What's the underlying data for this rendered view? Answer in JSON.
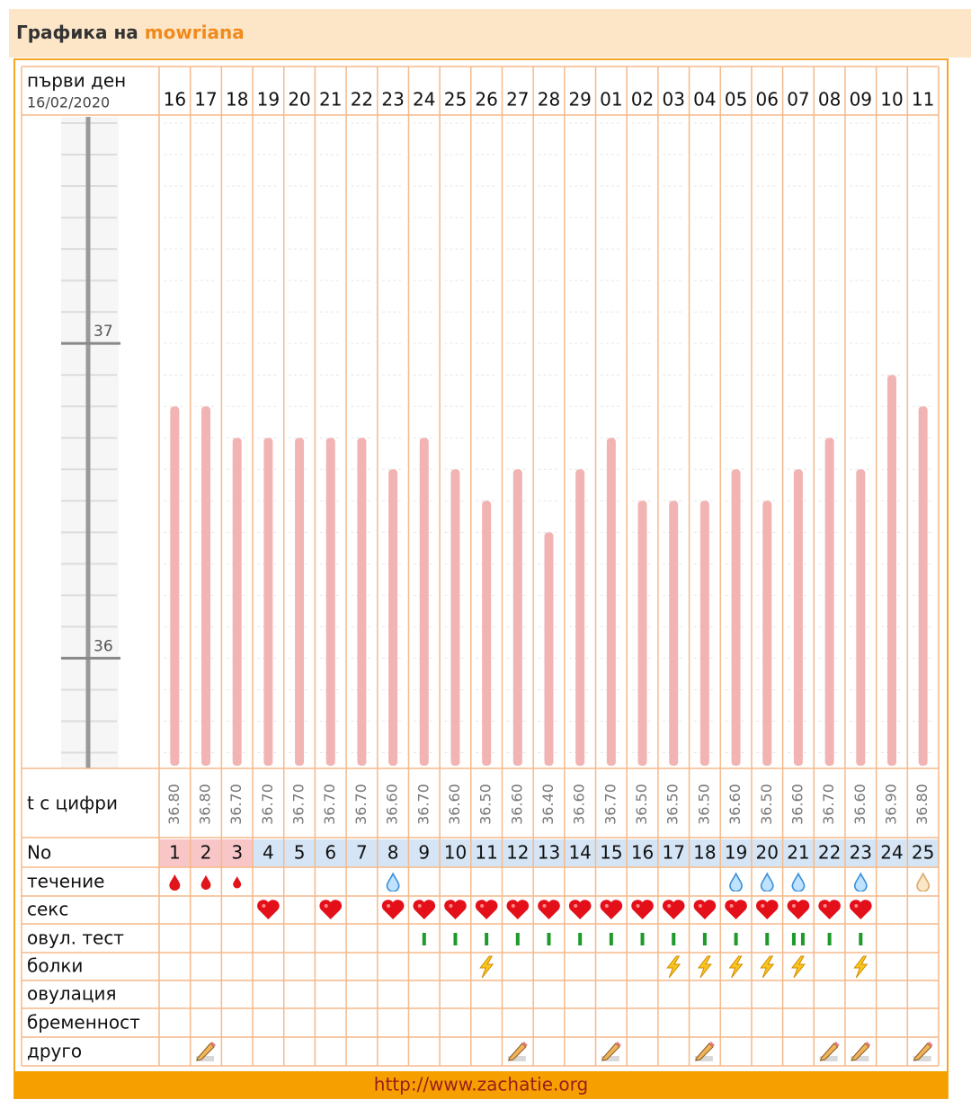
{
  "header": {
    "title": "Графика на",
    "user": "mowriana"
  },
  "chart_data": {
    "type": "bar",
    "categories": [
      "16",
      "17",
      "18",
      "19",
      "20",
      "21",
      "22",
      "23",
      "24",
      "25",
      "26",
      "27",
      "28",
      "29",
      "01",
      "02",
      "03",
      "04",
      "05",
      "06",
      "07",
      "08",
      "09",
      "10",
      "11"
    ],
    "values": [
      36.8,
      36.8,
      36.7,
      36.7,
      36.7,
      36.7,
      36.7,
      36.6,
      36.7,
      36.6,
      36.5,
      36.6,
      36.4,
      36.6,
      36.7,
      36.5,
      36.5,
      36.5,
      36.6,
      36.5,
      36.6,
      36.7,
      36.6,
      36.9,
      36.8
    ],
    "value_labels": [
      "36.80",
      "36.80",
      "36.70",
      "36.70",
      "36.70",
      "36.70",
      "36.70",
      "36.60",
      "36.70",
      "36.60",
      "36.50",
      "36.60",
      "36.40",
      "36.60",
      "36.70",
      "36.50",
      "36.50",
      "36.50",
      "36.60",
      "36.50",
      "36.60",
      "36.70",
      "36.60",
      "36.90",
      "36.80"
    ],
    "color": "#f2b3b3",
    "ylim": [
      35.65,
      37.72
    ],
    "yticks": [
      36,
      37
    ]
  },
  "table": {
    "first_day_label": "първи ден",
    "first_day_date": "16/02/2020",
    "temp_row_label": "t с цифри",
    "number_row_label": "No",
    "numbers": [
      1,
      2,
      3,
      4,
      5,
      6,
      7,
      8,
      9,
      10,
      11,
      12,
      13,
      14,
      15,
      16,
      17,
      18,
      19,
      20,
      21,
      22,
      23,
      24,
      25
    ],
    "row_labels": [
      "течение",
      "секс",
      "овул. тест",
      "болки",
      "овулация",
      "бременност",
      "друго"
    ]
  },
  "footer": {
    "url": "http://www.zachatie.org"
  }
}
